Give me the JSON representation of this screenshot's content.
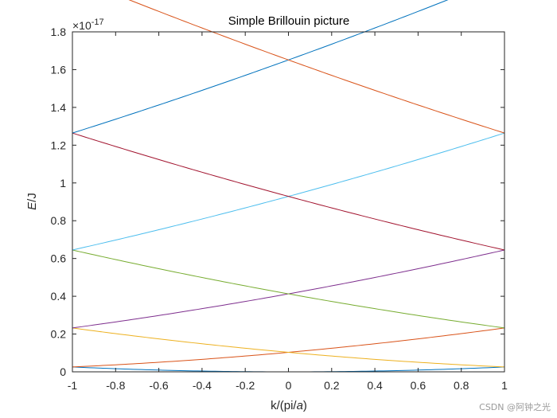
{
  "chart_data": {
    "type": "line",
    "title": "Simple Brillouin picture",
    "xlabel_prefix": "k/(pi/",
    "xlabel_italic": "a",
    "xlabel_suffix": ")",
    "ylabel_italic": "E",
    "ylabel_suffix": "/J",
    "exponent_prefix": "×10",
    "exponent_power": "-17",
    "xlim": [
      -1,
      1
    ],
    "ylim": [
      0,
      1.8
    ],
    "xticks": [
      "-1",
      "-0.8",
      "-0.6",
      "-0.4",
      "-0.2",
      "0",
      "0.2",
      "0.4",
      "0.6",
      "0.8",
      "1"
    ],
    "yticks": [
      "0",
      "0.2",
      "0.4",
      "0.6",
      "0.8",
      "1",
      "1.2",
      "1.4",
      "1.6",
      "1.8"
    ],
    "grid": false,
    "legend": "none",
    "bands": [
      {
        "shift": 0,
        "color": "#0072BD"
      },
      {
        "shift": 2,
        "color": "#D95319"
      },
      {
        "shift": -2,
        "color": "#EDB120"
      },
      {
        "shift": 4,
        "color": "#7E2F8E"
      },
      {
        "shift": -4,
        "color": "#77AC30"
      },
      {
        "shift": 6,
        "color": "#4DBEEE"
      },
      {
        "shift": -6,
        "color": "#A2142F"
      },
      {
        "shift": 8,
        "color": "#0072BD"
      },
      {
        "shift": -8,
        "color": "#D95319"
      }
    ],
    "energy_scale": 0.0258
  },
  "watermark": "CSDN @阿钟之光"
}
